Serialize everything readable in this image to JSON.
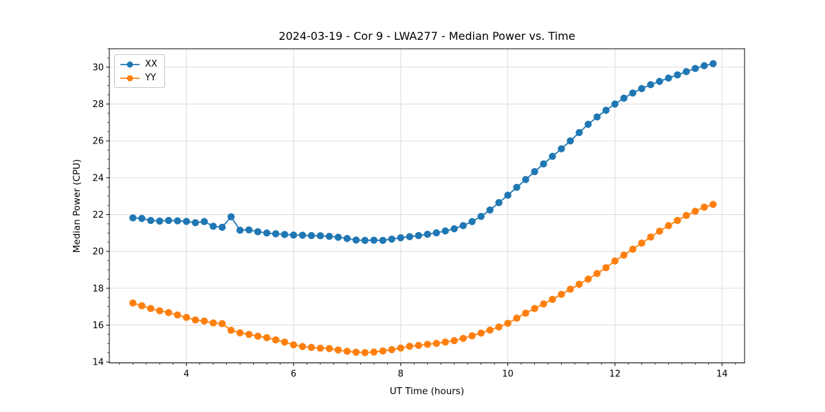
{
  "figure": {
    "title": "2024-03-19 - Cor 9 - LWA277 - Median Power vs. Time"
  },
  "chart_data": {
    "type": "line",
    "title": "2024-03-19 - Cor 9 - LWA277 - Median Power vs. Time",
    "xlabel": "UT Time (hours)",
    "ylabel": "Median Power (CPU)",
    "xlim": [
      2.56,
      14.42
    ],
    "ylim": [
      13.95,
      31.0
    ],
    "xticks": [
      4,
      6,
      8,
      10,
      12,
      14
    ],
    "yticks": [
      14,
      16,
      18,
      20,
      22,
      24,
      26,
      28,
      30
    ],
    "x_minor_step": 0.25,
    "y_minor_step": 0.5,
    "grid": true,
    "grid_color": "#d9d9d9",
    "spine_color": "#000000",
    "legend_position": "upper-left",
    "marker": "circle",
    "marker_size": 5.2,
    "line_width": 1.8,
    "x": [
      3.0,
      3.167,
      3.333,
      3.5,
      3.667,
      3.833,
      4.0,
      4.167,
      4.333,
      4.5,
      4.667,
      4.833,
      5.0,
      5.167,
      5.333,
      5.5,
      5.667,
      5.833,
      6.0,
      6.167,
      6.333,
      6.5,
      6.667,
      6.833,
      7.0,
      7.167,
      7.333,
      7.5,
      7.667,
      7.833,
      8.0,
      8.167,
      8.333,
      8.5,
      8.667,
      8.833,
      9.0,
      9.167,
      9.333,
      9.5,
      9.667,
      9.833,
      10.0,
      10.167,
      10.333,
      10.5,
      10.667,
      10.833,
      11.0,
      11.167,
      11.333,
      11.5,
      11.667,
      11.833,
      12.0,
      12.167,
      12.333,
      12.5,
      12.667,
      12.833,
      13.0,
      13.167,
      13.333,
      13.5,
      13.667,
      13.833
    ],
    "series": [
      {
        "name": "XX",
        "color": "#1f77b4",
        "values": [
          21.82,
          21.79,
          21.68,
          21.65,
          21.68,
          21.66,
          21.63,
          21.56,
          21.62,
          21.37,
          21.31,
          21.88,
          21.15,
          21.17,
          21.07,
          21.0,
          20.96,
          20.92,
          20.89,
          20.88,
          20.86,
          20.85,
          20.82,
          20.77,
          20.7,
          20.62,
          20.6,
          20.61,
          20.6,
          20.67,
          20.74,
          20.8,
          20.86,
          20.93,
          21.01,
          21.11,
          21.23,
          21.4,
          21.62,
          21.9,
          22.25,
          22.65,
          23.05,
          23.48,
          23.9,
          24.33,
          24.75,
          25.16,
          25.57,
          26.0,
          26.45,
          26.9,
          27.3,
          27.66,
          28.0,
          28.32,
          28.6,
          28.84,
          29.05,
          29.23,
          29.41,
          29.58,
          29.76,
          29.93,
          30.08,
          30.19
        ]
      },
      {
        "name": "YY",
        "color": "#ff7f0e",
        "values": [
          17.2,
          17.05,
          16.9,
          16.78,
          16.68,
          16.55,
          16.42,
          16.28,
          16.22,
          16.12,
          16.08,
          15.72,
          15.58,
          15.5,
          15.4,
          15.32,
          15.2,
          15.08,
          14.93,
          14.84,
          14.79,
          14.75,
          14.73,
          14.65,
          14.58,
          14.53,
          14.51,
          14.54,
          14.6,
          14.67,
          14.76,
          14.85,
          14.9,
          14.96,
          15.01,
          15.08,
          15.16,
          15.28,
          15.42,
          15.57,
          15.73,
          15.9,
          16.1,
          16.38,
          16.65,
          16.9,
          17.15,
          17.4,
          17.67,
          17.95,
          18.22,
          18.5,
          18.8,
          19.12,
          19.48,
          19.8,
          20.12,
          20.45,
          20.78,
          21.1,
          21.4,
          21.68,
          21.95,
          22.18,
          22.4,
          22.55
        ]
      }
    ]
  }
}
